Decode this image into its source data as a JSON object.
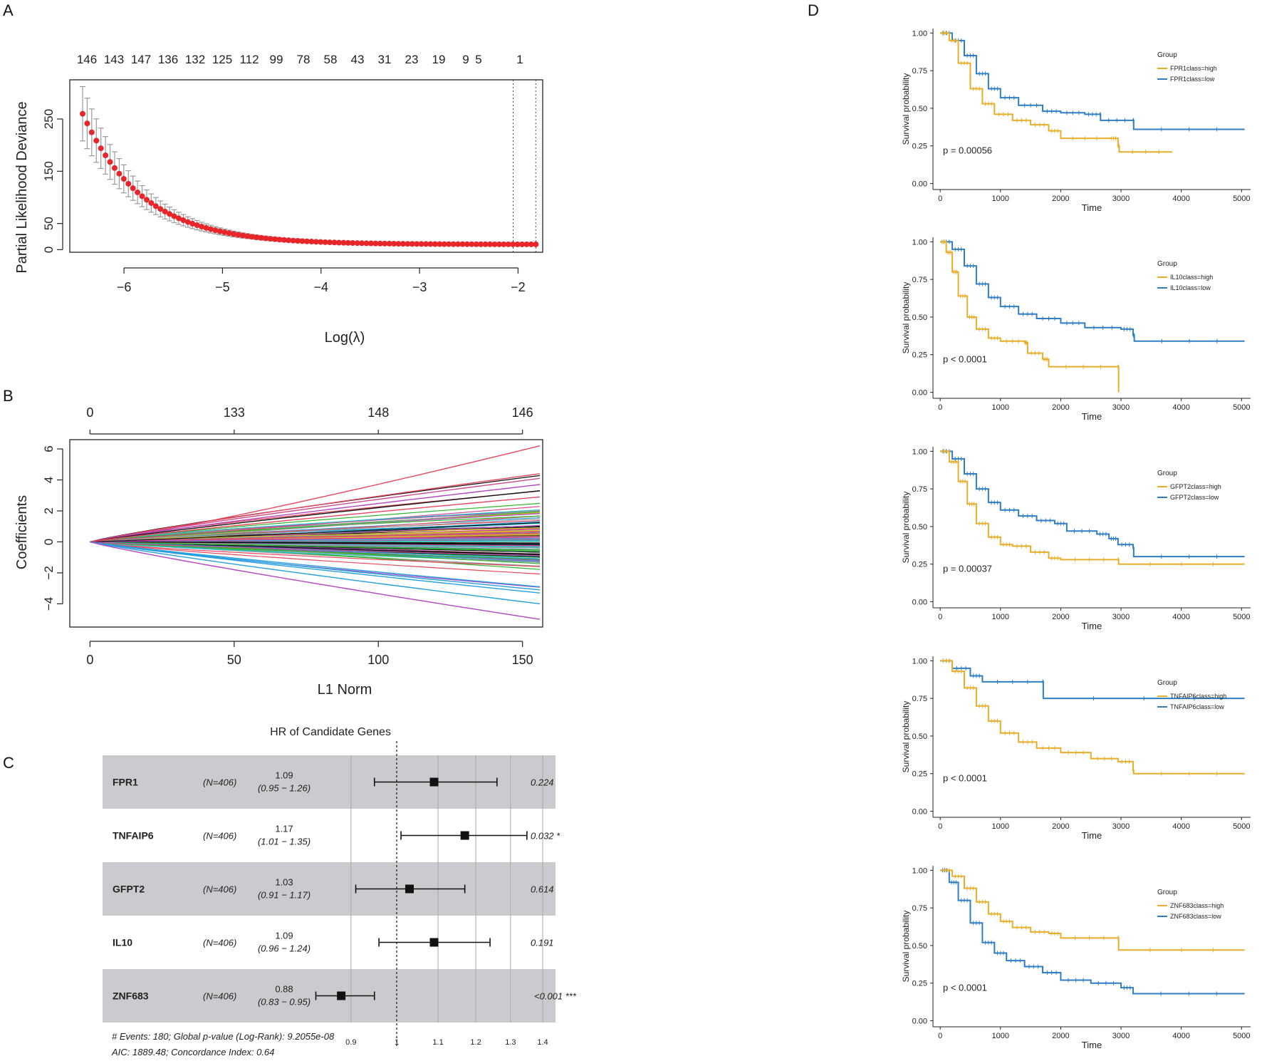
{
  "panels": {
    "a": "A",
    "b": "B",
    "c": "C",
    "d": "D"
  },
  "chart_data": [
    {
      "id": "A",
      "type": "scatter",
      "title": "",
      "xlabel": "Log(λ)",
      "ylabel": "Partial Likelihood Deviance",
      "xlim": [
        -6.55,
        -1.75
      ],
      "ylim": [
        -5,
        325
      ],
      "xticks": [
        -6,
        -5,
        -4,
        -3,
        -2
      ],
      "xtick_labels": [
        "−6",
        "−5",
        "−4",
        "−3",
        "−2"
      ],
      "yticks": [
        0,
        50,
        150,
        250
      ],
      "ytick_labels": [
        "0",
        "50",
        "150",
        "250"
      ],
      "top_axis_labels": [
        "146",
        "143",
        "147",
        "136",
        "132",
        "125",
        "112",
        "99",
        "78",
        "58",
        "43",
        "31",
        "23",
        "19",
        "9",
        "5",
        "1"
      ],
      "vlines": [
        -2.05,
        -1.82
      ],
      "series": [
        {
          "name": "cv deviance",
          "color": "#e8262a",
          "error_color": "#9a9a9a",
          "x_start": -6.42,
          "x_end": -1.82,
          "n_points": 100,
          "y_start": 260,
          "y_floor": 10,
          "decay_rate": 1.65,
          "err_start": 52,
          "err_floor": 1.5
        }
      ]
    },
    {
      "id": "B",
      "type": "line",
      "title": "",
      "xlabel": "L1 Norm",
      "ylabel": "Coefficients",
      "xlim": [
        -7,
        157
      ],
      "ylim": [
        -5.5,
        6.6
      ],
      "xticks": [
        0,
        50,
        100,
        150
      ],
      "xtick_labels": [
        "0",
        "50",
        "100",
        "150"
      ],
      "yticks": [
        -4,
        -2,
        0,
        2,
        4,
        6
      ],
      "ytick_labels": [
        "−4",
        "−2",
        "0",
        "2",
        "4",
        "6"
      ],
      "top_axis_ticks": [
        0,
        50,
        100,
        150
      ],
      "top_axis_labels": [
        "0",
        "133",
        "148",
        "146"
      ],
      "x_end": 156,
      "n_paths": 146,
      "highlight_paths": [
        {
          "end": 6.2,
          "color": "#e8465c"
        },
        {
          "end": 4.4,
          "color": "#e8465c"
        },
        {
          "end": 4.1,
          "color": "#cf4a8d"
        },
        {
          "end": 3.7,
          "color": "#b146c2"
        },
        {
          "end": 3.3,
          "color": "#111111"
        },
        {
          "end": 2.9,
          "color": "#e8465c"
        },
        {
          "end": -2.9,
          "color": "#27a0e0"
        },
        {
          "end": -3.1,
          "color": "#27a0e0"
        },
        {
          "end": -3.3,
          "color": "#27a0e0"
        },
        {
          "end": -4.0,
          "color": "#27a0e0"
        },
        {
          "end": -5.0,
          "color": "#b146c2"
        }
      ],
      "palette": [
        "#111111",
        "#e8465c",
        "#2cb52c",
        "#27a0e0",
        "#26c6c6",
        "#cf4a8d",
        "#e3c11a",
        "#9a9a9a",
        "#b146c2"
      ]
    },
    {
      "id": "C",
      "type": "forest",
      "title": "HR of Candidate Genes",
      "x_ticks": [
        0.9,
        1,
        1.1,
        1.2,
        1.3,
        1.4
      ],
      "x_tick_labels": [
        "0.9",
        "1",
        "1.1",
        "1.2",
        "1.3",
        "1.4"
      ],
      "x_log": true,
      "ref_line": 1,
      "rows": [
        {
          "gene": "FPR1",
          "n": "(N=406)",
          "hr": 1.09,
          "lo": 0.95,
          "hi": 1.26,
          "hr_text": "1.09",
          "ci_text": "(0.95 − 1.26)",
          "p_text": "0.224",
          "shaded": true
        },
        {
          "gene": "TNFAIP6",
          "n": "(N=406)",
          "hr": 1.17,
          "lo": 1.01,
          "hi": 1.35,
          "hr_text": "1.17",
          "ci_text": "(1.01 − 1.35)",
          "p_text": "0.032 *",
          "shaded": false
        },
        {
          "gene": "GFPT2",
          "n": "(N=406)",
          "hr": 1.03,
          "lo": 0.91,
          "hi": 1.17,
          "hr_text": "1.03",
          "ci_text": "(0.91 − 1.17)",
          "p_text": "0.614",
          "shaded": true
        },
        {
          "gene": "IL10",
          "n": "(N=406)",
          "hr": 1.09,
          "lo": 0.96,
          "hi": 1.24,
          "hr_text": "1.09",
          "ci_text": "(0.96 − 1.24)",
          "p_text": "0.191",
          "shaded": false
        },
        {
          "gene": "ZNF683",
          "n": "(N=406)",
          "hr": 0.88,
          "lo": 0.83,
          "hi": 0.95,
          "hr_text": "0.88",
          "ci_text": "(0.83 − 0.95)",
          "p_text": "<0.001 ***",
          "shaded": true
        }
      ],
      "footer_line1": "# Events: 180; Global p-value (Log-Rank): 9.2055e-08",
      "footer_line2": "AIC: 1889.48; Concordance Index: 0.64"
    },
    {
      "id": "D",
      "type": "line",
      "subtype": "kaplan-meier",
      "xlabel": "Time",
      "ylabel": "Survival probability",
      "xlim": [
        -120,
        5150
      ],
      "ylim": [
        -0.04,
        1.03
      ],
      "xticks": [
        0,
        1000,
        2000,
        3000,
        4000,
        5000
      ],
      "xtick_labels": [
        "0",
        "1000",
        "2000",
        "3000",
        "4000",
        "5000"
      ],
      "yticks": [
        0,
        0.25,
        0.5,
        0.75,
        1
      ],
      "ytick_labels": [
        "0.00",
        "0.25",
        "0.50",
        "0.75",
        "1.00"
      ],
      "legend_title": "Group",
      "colors": {
        "high": "#e8ae2a",
        "low": "#2f7ec4"
      },
      "plots": [
        {
          "pvalue": "p = 0.00056",
          "legend_high": "FPR1class=high",
          "legend_low": "FPR1class=low",
          "high": [
            [
              0,
              1
            ],
            [
              150,
              0.95
            ],
            [
              300,
              0.8
            ],
            [
              500,
              0.63
            ],
            [
              700,
              0.53
            ],
            [
              900,
              0.46
            ],
            [
              1200,
              0.42
            ],
            [
              1500,
              0.39
            ],
            [
              1800,
              0.35
            ],
            [
              2000,
              0.3
            ],
            [
              2800,
              0.3
            ],
            [
              2950,
              0.25
            ],
            [
              2970,
              0.21
            ],
            [
              3850,
              0.21
            ]
          ],
          "low": [
            [
              0,
              1
            ],
            [
              200,
              0.95
            ],
            [
              400,
              0.85
            ],
            [
              600,
              0.73
            ],
            [
              800,
              0.63
            ],
            [
              1000,
              0.57
            ],
            [
              1300,
              0.52
            ],
            [
              1700,
              0.48
            ],
            [
              2000,
              0.47
            ],
            [
              2400,
              0.46
            ],
            [
              2650,
              0.46
            ],
            [
              2660,
              0.42
            ],
            [
              3200,
              0.42
            ],
            [
              3210,
              0.36
            ],
            [
              5050,
              0.36
            ]
          ]
        },
        {
          "pvalue": "p < 0.0001",
          "legend_high": "IL10class=high",
          "legend_low": "IL10class=low",
          "high": [
            [
              0,
              1
            ],
            [
              100,
              0.93
            ],
            [
              200,
              0.8
            ],
            [
              300,
              0.64
            ],
            [
              450,
              0.5
            ],
            [
              600,
              0.42
            ],
            [
              800,
              0.36
            ],
            [
              1000,
              0.34
            ],
            [
              1400,
              0.33
            ],
            [
              1450,
              0.26
            ],
            [
              1700,
              0.22
            ],
            [
              1800,
              0.17
            ],
            [
              2950,
              0.17
            ],
            [
              2960,
              0
            ]
          ],
          "low": [
            [
              0,
              1
            ],
            [
              200,
              0.95
            ],
            [
              400,
              0.84
            ],
            [
              600,
              0.72
            ],
            [
              800,
              0.63
            ],
            [
              1000,
              0.57
            ],
            [
              1300,
              0.52
            ],
            [
              1600,
              0.49
            ],
            [
              2000,
              0.46
            ],
            [
              2400,
              0.43
            ],
            [
              3000,
              0.42
            ],
            [
              3200,
              0.38
            ],
            [
              3220,
              0.34
            ],
            [
              5050,
              0.34
            ]
          ]
        },
        {
          "pvalue": "p = 0.00037",
          "legend_high": "GFPT2class=high",
          "legend_low": "GFPT2class=low",
          "high": [
            [
              0,
              1
            ],
            [
              150,
              0.93
            ],
            [
              300,
              0.8
            ],
            [
              450,
              0.65
            ],
            [
              600,
              0.52
            ],
            [
              800,
              0.43
            ],
            [
              1000,
              0.38
            ],
            [
              1200,
              0.37
            ],
            [
              1500,
              0.33
            ],
            [
              1800,
              0.29
            ],
            [
              2000,
              0.28
            ],
            [
              2950,
              0.28
            ],
            [
              2960,
              0.25
            ],
            [
              5050,
              0.25
            ]
          ],
          "low": [
            [
              0,
              1
            ],
            [
              200,
              0.95
            ],
            [
              400,
              0.85
            ],
            [
              600,
              0.75
            ],
            [
              800,
              0.66
            ],
            [
              1000,
              0.61
            ],
            [
              1300,
              0.57
            ],
            [
              1600,
              0.54
            ],
            [
              1900,
              0.52
            ],
            [
              2100,
              0.47
            ],
            [
              2600,
              0.45
            ],
            [
              2800,
              0.42
            ],
            [
              2950,
              0.38
            ],
            [
              3200,
              0.36
            ],
            [
              3210,
              0.3
            ],
            [
              5050,
              0.3
            ]
          ]
        },
        {
          "pvalue": "p < 0.0001",
          "legend_high": "TNFAIP6class=high",
          "legend_low": "TNFAIP6class=low",
          "high": [
            [
              0,
              1
            ],
            [
              200,
              0.93
            ],
            [
              400,
              0.82
            ],
            [
              600,
              0.7
            ],
            [
              800,
              0.6
            ],
            [
              1000,
              0.52
            ],
            [
              1300,
              0.46
            ],
            [
              1600,
              0.42
            ],
            [
              2000,
              0.39
            ],
            [
              2500,
              0.35
            ],
            [
              2950,
              0.33
            ],
            [
              3200,
              0.27
            ],
            [
              3210,
              0.25
            ],
            [
              5050,
              0.25
            ]
          ],
          "low": [
            [
              0,
              1
            ],
            [
              200,
              0.95
            ],
            [
              500,
              0.9
            ],
            [
              700,
              0.86
            ],
            [
              1700,
              0.86
            ],
            [
              1710,
              0.75
            ],
            [
              5050,
              0.75
            ]
          ]
        },
        {
          "pvalue": "p < 0.0001",
          "legend_high": "ZNF683class=high",
          "legend_low": "ZNF683class=low",
          "high": [
            [
              0,
              1
            ],
            [
              200,
              0.96
            ],
            [
              400,
              0.88
            ],
            [
              600,
              0.79
            ],
            [
              800,
              0.71
            ],
            [
              1000,
              0.66
            ],
            [
              1200,
              0.62
            ],
            [
              1500,
              0.59
            ],
            [
              1800,
              0.58
            ],
            [
              2000,
              0.55
            ],
            [
              2950,
              0.55
            ],
            [
              2960,
              0.47
            ],
            [
              5050,
              0.47
            ]
          ],
          "low": [
            [
              0,
              1
            ],
            [
              150,
              0.92
            ],
            [
              300,
              0.8
            ],
            [
              500,
              0.65
            ],
            [
              700,
              0.52
            ],
            [
              900,
              0.45
            ],
            [
              1100,
              0.4
            ],
            [
              1400,
              0.36
            ],
            [
              1700,
              0.32
            ],
            [
              2000,
              0.27
            ],
            [
              2500,
              0.25
            ],
            [
              3000,
              0.22
            ],
            [
              3200,
              0.18
            ],
            [
              5050,
              0.18
            ]
          ]
        }
      ]
    }
  ]
}
